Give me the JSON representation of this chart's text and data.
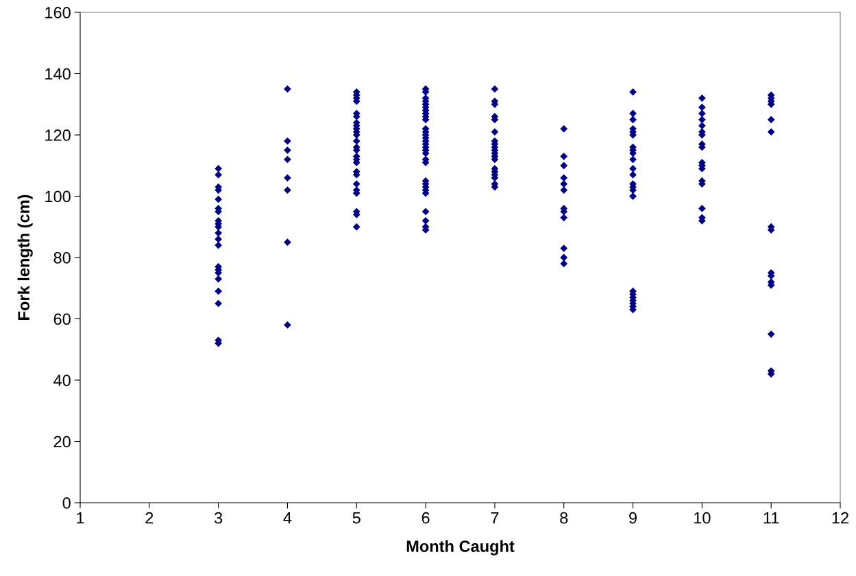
{
  "chart_data": {
    "type": "scatter",
    "xlabel": "Month Caught",
    "ylabel": "Fork length (cm)",
    "xlim": [
      1,
      12
    ],
    "xticks": [
      1,
      2,
      3,
      4,
      5,
      6,
      7,
      8,
      9,
      10,
      11,
      12
    ],
    "ylim": [
      0,
      160
    ],
    "yticks": [
      0,
      20,
      40,
      60,
      80,
      100,
      120,
      140,
      160
    ],
    "grid": false,
    "marker": "diamond",
    "series": [
      {
        "color": "#000080",
        "x": [
          3,
          3,
          3,
          3,
          3,
          3,
          3,
          3,
          3,
          3,
          3,
          3,
          3,
          3,
          3,
          3,
          3,
          3,
          3,
          3,
          3,
          4,
          4,
          4,
          4,
          4,
          4,
          4,
          4,
          5,
          5,
          5,
          5,
          5,
          5,
          5,
          5,
          5,
          5,
          5,
          5,
          5,
          5,
          5,
          5,
          5,
          5,
          5,
          5,
          5,
          5,
          5,
          5,
          5,
          6,
          6,
          6,
          6,
          6,
          6,
          6,
          6,
          6,
          6,
          6,
          6,
          6,
          6,
          6,
          6,
          6,
          6,
          6,
          6,
          6,
          6,
          6,
          6,
          6,
          6,
          6,
          6,
          6,
          6,
          7,
          7,
          7,
          7,
          7,
          7,
          7,
          7,
          7,
          7,
          7,
          7,
          7,
          7,
          7,
          7,
          7,
          7,
          7,
          8,
          8,
          8,
          8,
          8,
          8,
          8,
          8,
          8,
          8,
          8,
          8,
          9,
          9,
          9,
          9,
          9,
          9,
          9,
          9,
          9,
          9,
          9,
          9,
          9,
          9,
          9,
          9,
          9,
          9,
          9,
          9,
          9,
          9,
          9,
          10,
          10,
          10,
          10,
          10,
          10,
          10,
          10,
          10,
          10,
          10,
          10,
          10,
          10,
          10,
          10,
          10,
          11,
          11,
          11,
          11,
          11,
          11,
          11,
          11,
          11,
          11,
          11,
          11,
          11,
          11,
          11
        ],
        "values": [
          109,
          107,
          103,
          102,
          99,
          96,
          95,
          92,
          91,
          90,
          88,
          86,
          84,
          77,
          76,
          75,
          73,
          69,
          65,
          53,
          52,
          135,
          118,
          115,
          112,
          106,
          102,
          85,
          58,
          134,
          133,
          132,
          131,
          127,
          126,
          124,
          123,
          122,
          121,
          120,
          118,
          116,
          115,
          113,
          112,
          111,
          108,
          107,
          104,
          102,
          101,
          95,
          94,
          90,
          135,
          134,
          132,
          131,
          130,
          129,
          128,
          127,
          126,
          125,
          122,
          121,
          120,
          119,
          118,
          117,
          116,
          115,
          114,
          112,
          111,
          105,
          104,
          103,
          102,
          101,
          95,
          92,
          90,
          89,
          135,
          131,
          130,
          126,
          125,
          121,
          118,
          117,
          116,
          115,
          114,
          113,
          112,
          109,
          108,
          107,
          106,
          104,
          103,
          122,
          113,
          110,
          106,
          104,
          102,
          96,
          95,
          93,
          83,
          80,
          78,
          134,
          127,
          125,
          122,
          121,
          120,
          116,
          115,
          114,
          112,
          109,
          107,
          104,
          103,
          102,
          100,
          69,
          68,
          67,
          66,
          65,
          64,
          63,
          132,
          129,
          127,
          125,
          123,
          121,
          120,
          117,
          116,
          111,
          110,
          109,
          105,
          104,
          96,
          93,
          92,
          133,
          132,
          131,
          130,
          125,
          121,
          90,
          89,
          75,
          74,
          72,
          71,
          55,
          43,
          42
        ]
      }
    ]
  }
}
